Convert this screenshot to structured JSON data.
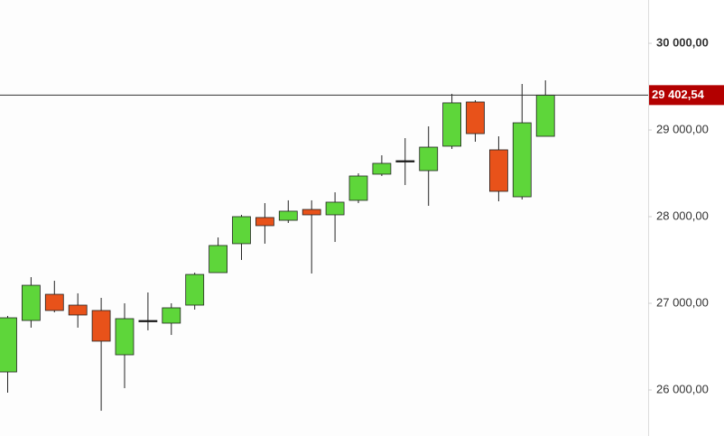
{
  "chart_data": {
    "type": "candlestick",
    "categories": [
      null,
      null,
      null,
      null,
      null,
      null,
      null,
      null,
      null,
      null,
      null,
      null,
      null,
      null,
      null,
      null,
      null,
      null,
      null,
      null,
      null,
      null,
      null,
      null
    ],
    "open": [
      26208,
      26802,
      27104,
      26979,
      26917,
      26406,
      26802,
      26771,
      26979,
      27354,
      27688,
      27990,
      27958,
      28083,
      28021,
      28188,
      28490,
      28646,
      28531,
      28813,
      29323,
      28771,
      28229,
      28927
    ],
    "high": [
      26854,
      27302,
      27260,
      27115,
      27063,
      27000,
      27125,
      27000,
      27354,
      27760,
      28021,
      28156,
      28188,
      28188,
      28281,
      28500,
      28708,
      28906,
      29042,
      29417,
      29344,
      28927,
      29531,
      29573
    ],
    "low": [
      25969,
      26719,
      26896,
      26719,
      25760,
      26021,
      26688,
      26635,
      26927,
      27354,
      27500,
      27688,
      27927,
      27344,
      27708,
      28156,
      28469,
      28365,
      28125,
      28781,
      28865,
      28177,
      28198,
      28927
    ],
    "close": [
      26833,
      27208,
      26917,
      26865,
      26563,
      26823,
      26802,
      26948,
      27333,
      27667,
      28000,
      27896,
      28063,
      28021,
      28167,
      28469,
      28615,
      28646,
      28802,
      29313,
      28958,
      28292,
      29083,
      29402.54
    ],
    "up_color": "#5ed63a",
    "down_color": "#e8521a",
    "ylim": [
      25468.75,
      30500
    ],
    "yticks": [
      {
        "value": 26000,
        "label": "26 000,00"
      },
      {
        "value": 27000,
        "label": "27 000,00"
      },
      {
        "value": 28000,
        "label": "28 000,00"
      },
      {
        "value": 29000,
        "label": "29 000,00"
      },
      {
        "value": 30000,
        "label": "30 000,00"
      }
    ],
    "last_price": {
      "value": 29402.54,
      "label": "29 402,54",
      "color": "#b30000"
    }
  }
}
